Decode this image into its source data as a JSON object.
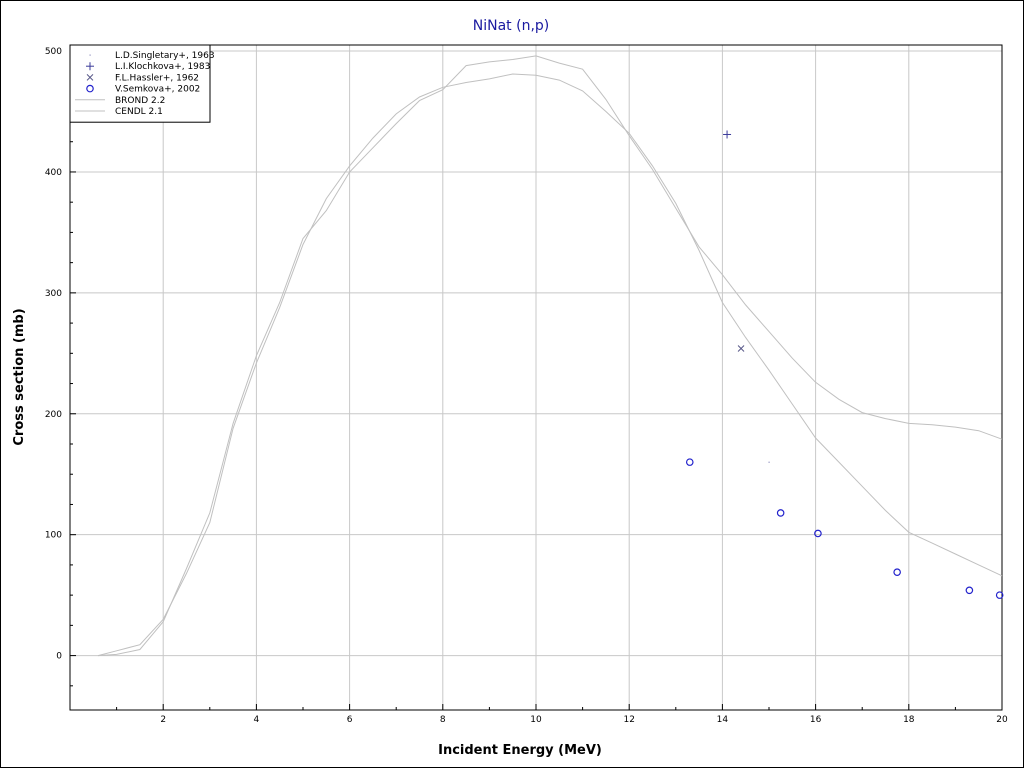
{
  "chart_data": {
    "type": "line",
    "title": "NiNat (n,p)",
    "xlabel": "Incident Energy (MeV)",
    "ylabel": "Cross section (mb)",
    "xlim": [
      0,
      20
    ],
    "ylim": [
      -45,
      505
    ],
    "x_ticks": [
      "2",
      "4",
      "6",
      "8",
      "10",
      "12",
      "14",
      "16",
      "18",
      "20"
    ],
    "y_ticks": [
      "0",
      "100",
      "200",
      "300",
      "400",
      "500"
    ],
    "grid": true,
    "legend_position": "top-left",
    "series": [
      {
        "name": "L.D.Singletary+, 1963",
        "kind": "scatter",
        "marker": "dot",
        "color": "#9090c0",
        "x": [
          15.0
        ],
        "y": [
          160
        ]
      },
      {
        "name": "L.I.Klochkova+, 1983",
        "kind": "scatter",
        "marker": "plus",
        "color": "#3a3a9a",
        "x": [
          14.1
        ],
        "y": [
          431
        ]
      },
      {
        "name": "F.L.Hassler+, 1962",
        "kind": "scatter",
        "marker": "cross",
        "color": "#5a5a8a",
        "x": [
          14.4
        ],
        "y": [
          254
        ]
      },
      {
        "name": "V.Semkova+, 2002",
        "kind": "scatter",
        "marker": "circle",
        "color": "#2222cc",
        "x": [
          13.3,
          15.25,
          16.05,
          17.75,
          19.3,
          19.95
        ],
        "y": [
          160,
          118,
          101,
          69,
          54,
          50
        ]
      },
      {
        "name": "BROND 2.2",
        "kind": "line",
        "color": "#c0c0c0",
        "x": [
          0.6,
          1.0,
          1.5,
          2.0,
          2.5,
          3.0,
          3.5,
          4.0,
          4.5,
          5.0,
          5.5,
          6.0,
          6.5,
          7.0,
          7.5,
          8.0,
          8.5,
          9.0,
          9.5,
          10.0,
          10.5,
          11.0,
          11.5,
          12.0,
          12.5,
          13.0,
          13.5,
          14.0,
          14.5,
          15.0,
          15.5,
          16.0,
          16.5,
          17.0,
          17.5,
          18.0,
          18.5,
          19.0,
          19.5,
          20.0
        ],
        "y": [
          0,
          1,
          5,
          28,
          72,
          118,
          192,
          248,
          292,
          345,
          368,
          400,
          420,
          440,
          459,
          468,
          488,
          491,
          493,
          496,
          490,
          485,
          460,
          430,
          402,
          370,
          338,
          315,
          290,
          268,
          246,
          226,
          212,
          201,
          196,
          192,
          191,
          189,
          186,
          179
        ]
      },
      {
        "name": "CENDL 2.1",
        "kind": "line",
        "color": "#c0c0c0",
        "x": [
          0.6,
          1.0,
          1.5,
          2.0,
          2.5,
          3.0,
          3.5,
          4.0,
          4.5,
          5.0,
          5.5,
          6.0,
          6.5,
          7.0,
          7.5,
          8.0,
          8.5,
          9.0,
          9.5,
          10.0,
          10.5,
          11.0,
          11.5,
          12.0,
          12.5,
          13.0,
          13.5,
          14.0,
          14.5,
          15.0,
          15.5,
          16.0,
          16.5,
          17.0,
          17.5,
          18.0,
          18.5,
          19.0,
          19.5,
          20.0
        ],
        "y": [
          0,
          4,
          9,
          30,
          68,
          110,
          188,
          242,
          288,
          340,
          378,
          405,
          428,
          448,
          462,
          470,
          474,
          477,
          481,
          480,
          476,
          467,
          450,
          432,
          405,
          374,
          335,
          292,
          263,
          236,
          208,
          180,
          160,
          140,
          120,
          102,
          93,
          84,
          75,
          66
        ]
      }
    ]
  }
}
